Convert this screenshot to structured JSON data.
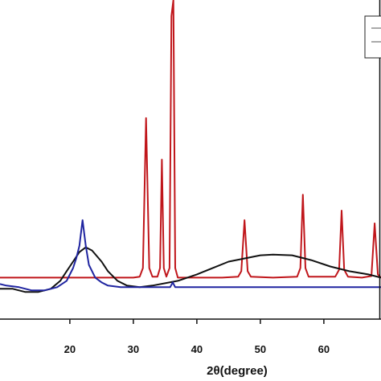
{
  "chart_data": {
    "type": "line",
    "xlabel": "2θ(degree)",
    "ylabel": "",
    "xlim": [
      9,
      69
    ],
    "ylim": [
      0,
      100
    ],
    "x_ticks": [
      20,
      30,
      40,
      50,
      60
    ],
    "grid": false,
    "legend": {
      "placement": "top-right",
      "cut_off": true
    },
    "series": [
      {
        "color": "#c0161b",
        "x": [
          9,
          10,
          20,
          30,
          31,
          31.5,
          32,
          32.5,
          33,
          33.8,
          34.2,
          34.5,
          34.8,
          35.2,
          35.7,
          36,
          36.3,
          36.6,
          37,
          38,
          40,
          44,
          46.5,
          47,
          47.5,
          48,
          48.5,
          52,
          55.8,
          56.3,
          56.7,
          57.1,
          57.6,
          61.8,
          62.4,
          62.8,
          63.2,
          63.8,
          66,
          67.5,
          68,
          68.5,
          69
        ],
        "y": [
          13,
          13,
          13,
          13,
          13.3,
          16,
          63,
          16,
          13.3,
          13.3,
          16,
          50,
          16,
          13.3,
          16,
          95,
          100,
          16,
          13,
          13,
          13,
          13,
          13.3,
          15,
          31,
          15,
          13.3,
          13,
          13.3,
          16,
          39,
          16,
          13.3,
          13.3,
          15.5,
          34,
          15.5,
          13.3,
          13,
          13.5,
          30,
          14,
          13
        ]
      },
      {
        "color": "#111111",
        "x": [
          9,
          11,
          13,
          15,
          17,
          18.5,
          19.5,
          20.5,
          21.5,
          22.5,
          23.5,
          25,
          26,
          27.5,
          29,
          31,
          33,
          37,
          40,
          45,
          50,
          52,
          55,
          58,
          61,
          64,
          67,
          69
        ],
        "y": [
          9.5,
          9.5,
          8.5,
          8.5,
          9.5,
          12,
          15,
          18,
          21,
          22.5,
          21.5,
          18,
          15,
          12,
          10.5,
          10,
          10.5,
          12,
          14,
          18,
          20,
          20.2,
          20,
          18.5,
          16.5,
          15,
          14,
          13
        ]
      },
      {
        "color": "#1f24a0",
        "x": [
          9,
          10,
          12,
          14,
          16,
          18,
          19.5,
          20.5,
          21,
          21.5,
          22,
          22.5,
          23,
          24,
          25,
          26,
          28,
          30,
          35,
          35.8,
          36.2,
          36.6,
          37,
          40,
          45,
          50,
          55,
          60,
          65,
          69
        ],
        "y": [
          11,
          10.5,
          10,
          9,
          9,
          10,
          12,
          16,
          19,
          23,
          31,
          23,
          17,
          13,
          11.5,
          10.5,
          10,
          10,
          10,
          10,
          11.5,
          10,
          10,
          10,
          10,
          10,
          10,
          10,
          10,
          10
        ]
      }
    ]
  }
}
